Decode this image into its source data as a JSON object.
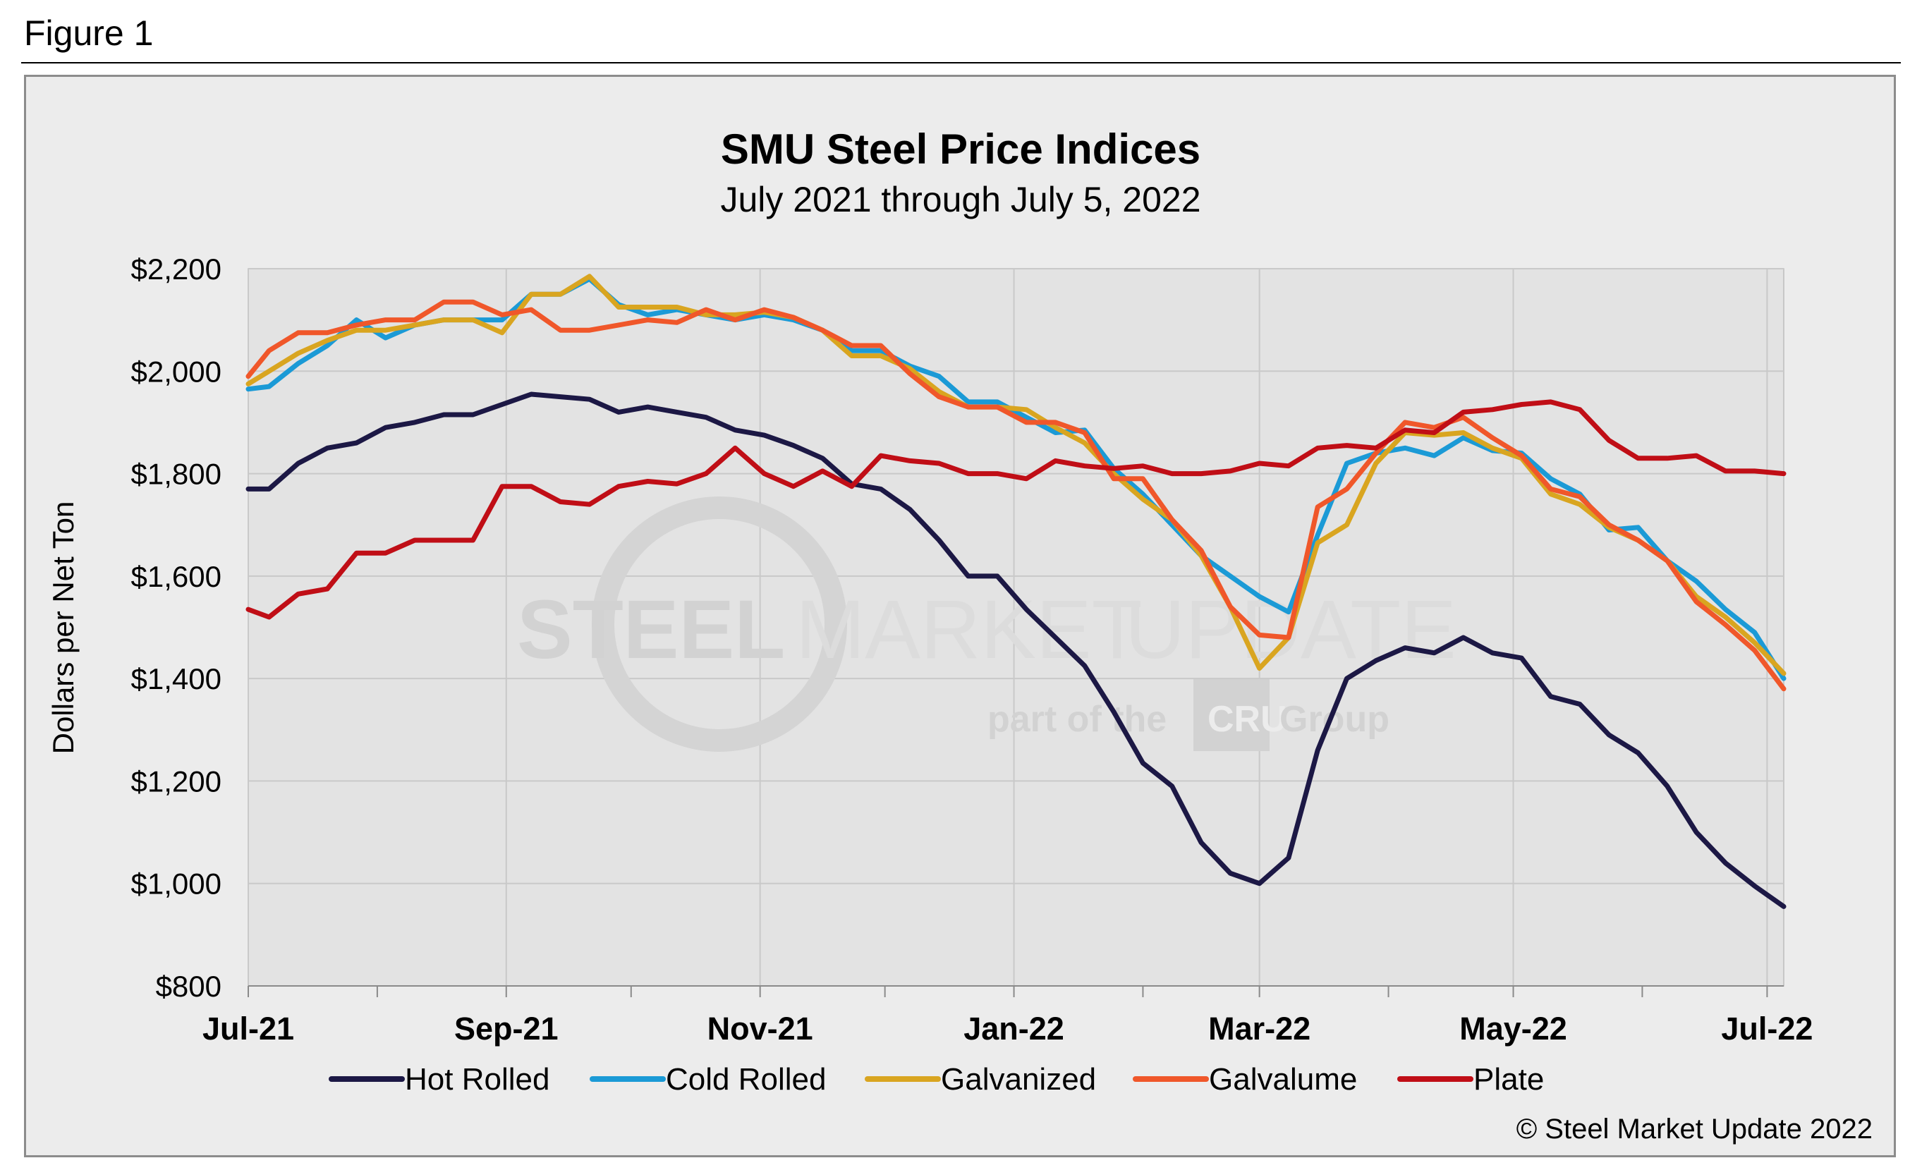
{
  "figure_label": "Figure 1",
  "copyright": "© Steel Market Update 2022",
  "watermark": {
    "word1": "STEEL",
    "word2": "MARKET",
    "word3": "UPDATE",
    "tagline_pre": "part of the",
    "tagline_logo": "CRU",
    "tagline_post": "Group"
  },
  "chart_data": {
    "type": "line",
    "title": "SMU Steel Price Indices",
    "subtitle": "July 2021 through July 5, 2022",
    "xlabel": "",
    "ylabel": "Dollars per Net Ton",
    "ylim": [
      800,
      2200
    ],
    "yticks": [
      800,
      1000,
      1200,
      1400,
      1600,
      1800,
      2000,
      2200
    ],
    "ytick_labels": [
      "$800",
      "$1,000",
      "$1,200",
      "$1,400",
      "$1,600",
      "$1,800",
      "$2,000",
      "$2,200"
    ],
    "xlim": [
      "2021-07-01",
      "2022-07-05"
    ],
    "x_major_ticks": [
      {
        "date": "2021-07-01",
        "label": "Jul-21"
      },
      {
        "date": "2021-09-01",
        "label": "Sep-21"
      },
      {
        "date": "2021-11-01",
        "label": "Nov-21"
      },
      {
        "date": "2022-01-01",
        "label": "Jan-22"
      },
      {
        "date": "2022-03-01",
        "label": "Mar-22"
      },
      {
        "date": "2022-05-01",
        "label": "May-22"
      },
      {
        "date": "2022-07-01",
        "label": "Jul-22"
      }
    ],
    "x_minor_ticks": [
      "2021-08-01",
      "2021-10-01",
      "2021-12-01",
      "2022-02-01",
      "2022-04-01",
      "2022-06-01"
    ],
    "grid": true,
    "legend_position": "bottom",
    "x": [
      "2021-07-01",
      "2021-07-06",
      "2021-07-13",
      "2021-07-20",
      "2021-07-27",
      "2021-08-03",
      "2021-08-10",
      "2021-08-17",
      "2021-08-24",
      "2021-08-31",
      "2021-09-07",
      "2021-09-14",
      "2021-09-21",
      "2021-09-28",
      "2021-10-05",
      "2021-10-12",
      "2021-10-19",
      "2021-10-26",
      "2021-11-02",
      "2021-11-09",
      "2021-11-16",
      "2021-11-23",
      "2021-11-30",
      "2021-12-07",
      "2021-12-14",
      "2021-12-21",
      "2021-12-28",
      "2022-01-04",
      "2022-01-11",
      "2022-01-18",
      "2022-01-25",
      "2022-02-01",
      "2022-02-08",
      "2022-02-15",
      "2022-02-22",
      "2022-03-01",
      "2022-03-08",
      "2022-03-15",
      "2022-03-22",
      "2022-03-29",
      "2022-04-05",
      "2022-04-12",
      "2022-04-19",
      "2022-04-26",
      "2022-05-03",
      "2022-05-10",
      "2022-05-17",
      "2022-05-24",
      "2022-05-31",
      "2022-06-07",
      "2022-06-14",
      "2022-06-21",
      "2022-06-28",
      "2022-07-05"
    ],
    "series": [
      {
        "name": "Hot Rolled",
        "color": "#1c1845",
        "values": [
          1770,
          1770,
          1820,
          1850,
          1860,
          1890,
          1900,
          1915,
          1915,
          1935,
          1955,
          1950,
          1945,
          1920,
          1930,
          1920,
          1910,
          1885,
          1875,
          1855,
          1830,
          1780,
          1770,
          1730,
          1670,
          1600,
          1600,
          1535,
          1480,
          1425,
          1335,
          1235,
          1190,
          1080,
          1020,
          1000,
          1050,
          1260,
          1400,
          1435,
          1460,
          1450,
          1480,
          1450,
          1440,
          1365,
          1350,
          1290,
          1255,
          1190,
          1100,
          1040,
          995,
          955
        ]
      },
      {
        "name": "Cold Rolled",
        "color": "#1b9ad6",
        "values": [
          1965,
          1970,
          2015,
          2050,
          2100,
          2065,
          2090,
          2100,
          2100,
          2100,
          2150,
          2150,
          2180,
          2130,
          2110,
          2120,
          2110,
          2100,
          2110,
          2100,
          2080,
          2040,
          2040,
          2010,
          1990,
          1940,
          1940,
          1910,
          1880,
          1885,
          1810,
          1760,
          1700,
          1640,
          1600,
          1560,
          1530,
          1680,
          1820,
          1840,
          1850,
          1835,
          1870,
          1845,
          1840,
          1790,
          1760,
          1690,
          1695,
          1630,
          1590,
          1535,
          1490,
          1400
        ]
      },
      {
        "name": "Galvanized",
        "color": "#d9a520",
        "values": [
          1975,
          2000,
          2035,
          2060,
          2080,
          2080,
          2090,
          2100,
          2100,
          2075,
          2150,
          2150,
          2185,
          2125,
          2125,
          2125,
          2110,
          2110,
          2115,
          2105,
          2080,
          2030,
          2030,
          2005,
          1960,
          1930,
          1930,
          1925,
          1890,
          1860,
          1800,
          1750,
          1710,
          1640,
          1540,
          1420,
          1480,
          1665,
          1700,
          1820,
          1880,
          1875,
          1880,
          1850,
          1830,
          1760,
          1740,
          1695,
          1670,
          1630,
          1560,
          1520,
          1470,
          1410
        ]
      },
      {
        "name": "Galvalume",
        "color": "#f0572a",
        "values": [
          1990,
          2040,
          2075,
          2075,
          2090,
          2100,
          2100,
          2135,
          2135,
          2110,
          2120,
          2080,
          2080,
          2090,
          2100,
          2095,
          2120,
          2100,
          2120,
          2105,
          2080,
          2050,
          2050,
          1995,
          1950,
          1930,
          1930,
          1900,
          1900,
          1880,
          1790,
          1790,
          1710,
          1650,
          1540,
          1485,
          1480,
          1735,
          1770,
          1840,
          1900,
          1890,
          1910,
          1870,
          1835,
          1770,
          1755,
          1700,
          1670,
          1630,
          1550,
          1505,
          1455,
          1380
        ]
      },
      {
        "name": "Plate",
        "color": "#c00e16",
        "values": [
          1535,
          1520,
          1565,
          1575,
          1645,
          1645,
          1670,
          1670,
          1670,
          1775,
          1775,
          1745,
          1740,
          1775,
          1785,
          1780,
          1800,
          1850,
          1800,
          1775,
          1805,
          1775,
          1835,
          1825,
          1820,
          1800,
          1800,
          1790,
          1825,
          1815,
          1810,
          1815,
          1800,
          1800,
          1805,
          1820,
          1815,
          1850,
          1855,
          1850,
          1885,
          1880,
          1920,
          1925,
          1935,
          1940,
          1925,
          1865,
          1830,
          1830,
          1835,
          1805,
          1805,
          1800
        ]
      }
    ]
  }
}
